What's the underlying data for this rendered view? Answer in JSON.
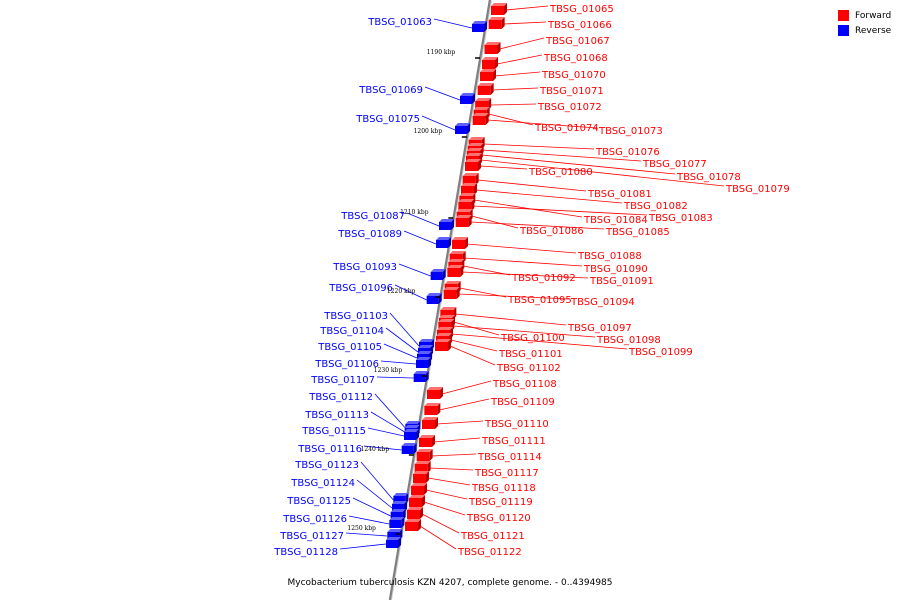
{
  "caption": "Mycobacterium tuberculosis KZN 4207, complete genome. - 0..4394985",
  "legend": [
    {
      "label": "Forward",
      "color": "#ff0000"
    },
    {
      "label": "Reverse",
      "color": "#0000ff"
    }
  ],
  "colors": {
    "forward": "#ff0000",
    "reverse": "#0000ff",
    "backbone": "#808080"
  },
  "tick_labels": [
    "1190 kbp",
    "1200 kbp",
    "1210 kbp",
    "1220 kbp",
    "1230 kbp",
    "1240 kbp",
    "1250 kbp"
  ],
  "forward_genes": [
    "TBSG_01065",
    "TBSG_01066",
    "TBSG_01067",
    "TBSG_01068",
    "TBSG_01070",
    "TBSG_01071",
    "TBSG_01072",
    "TBSG_01074",
    "TBSG_01073",
    "TBSG_01076",
    "TBSG_01077",
    "TBSG_01078",
    "TBSG_01079",
    "TBSG_01080",
    "TBSG_01081",
    "TBSG_01082",
    "TBSG_01084",
    "TBSG_01083",
    "TBSG_01086",
    "TBSG_01085",
    "TBSG_01088",
    "TBSG_01090",
    "TBSG_01092",
    "TBSG_01091",
    "TBSG_01095",
    "TBSG_01094",
    "TBSG_01097",
    "TBSG_01100",
    "TBSG_01098",
    "TBSG_01099",
    "TBSG_01101",
    "TBSG_01102",
    "TBSG_01108",
    "TBSG_01109",
    "TBSG_01110",
    "TBSG_01111",
    "TBSG_01114",
    "TBSG_01117",
    "TBSG_01118",
    "TBSG_01119",
    "TBSG_01120",
    "TBSG_01121",
    "TBSG_01122"
  ],
  "reverse_genes": [
    "TBSG_01063",
    "TBSG_01069",
    "TBSG_01075",
    "TBSG_01087",
    "TBSG_01089",
    "TBSG_01093",
    "TBSG_01096",
    "TBSG_01103",
    "TBSG_01104",
    "TBSG_01105",
    "TBSG_01106",
    "TBSG_01107",
    "TBSG_01112",
    "TBSG_01113",
    "TBSG_01115",
    "TBSG_01116",
    "TBSG_01123",
    "TBSG_01124",
    "TBSG_01125",
    "TBSG_01126",
    "TBSG_01127",
    "TBSG_01128"
  ]
}
